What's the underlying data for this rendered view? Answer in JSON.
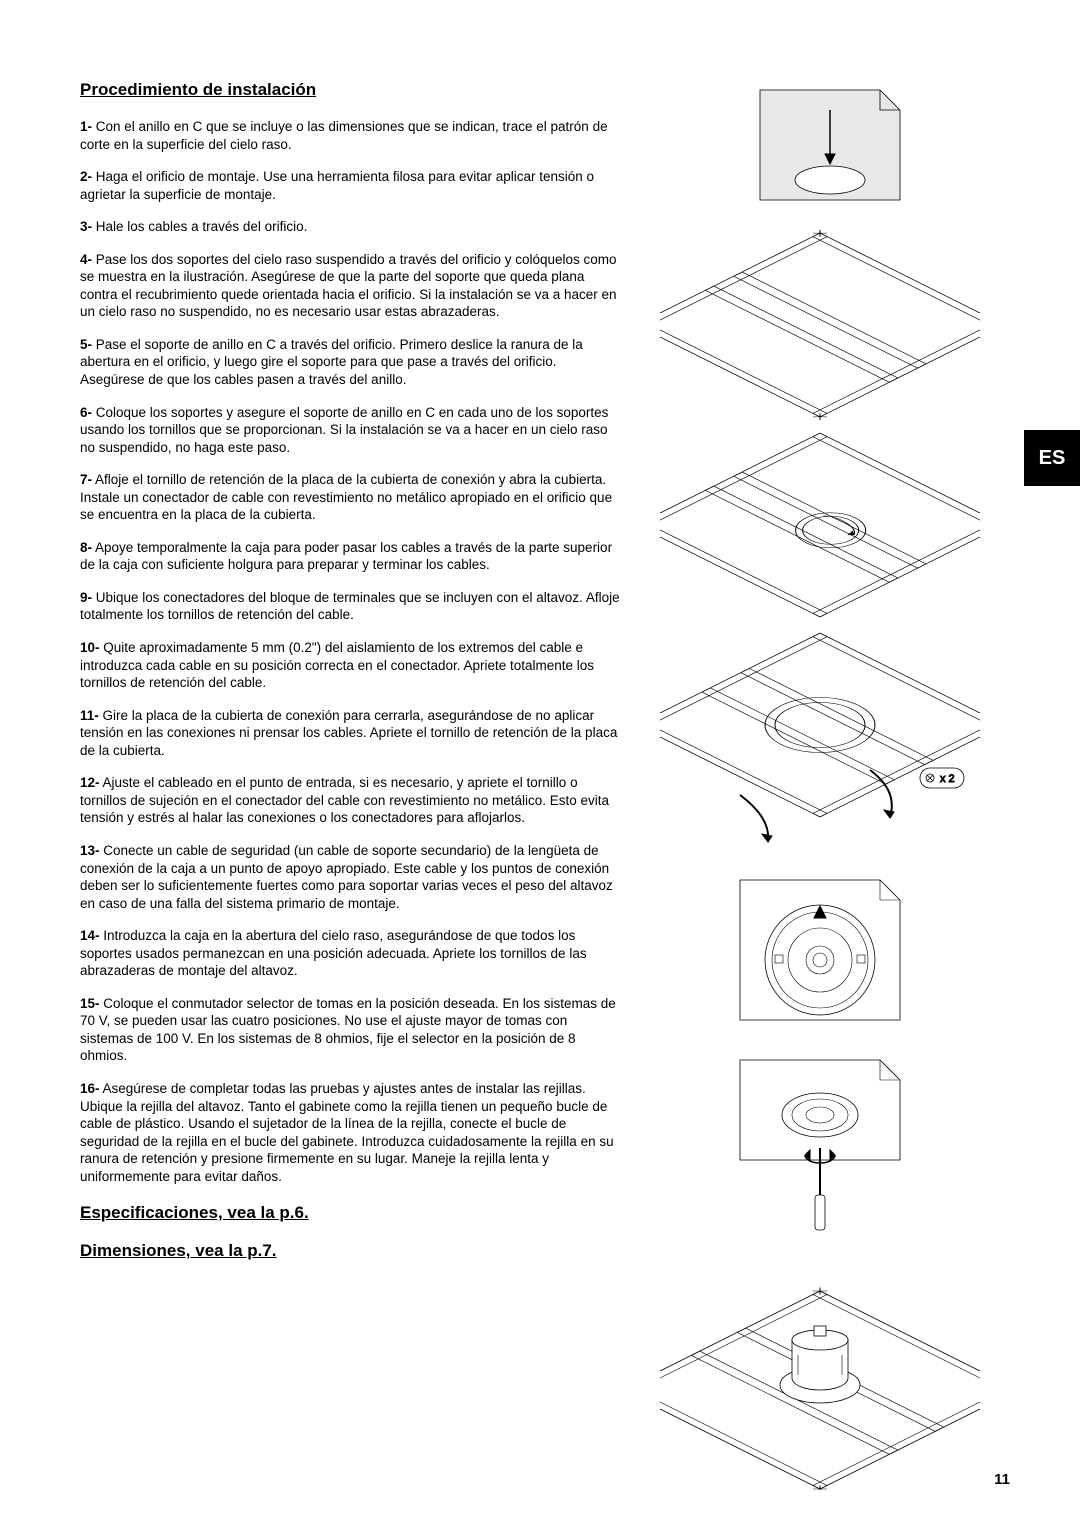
{
  "lang_tab": "ES",
  "page_number": "11",
  "headings": {
    "main": "Procedimiento de instalación",
    "specs": "Especificaciones, vea la p.6.",
    "dims": "Dimensiones, vea la p.7."
  },
  "steps": [
    {
      "num": "1-",
      "text": " Con el anillo en C que se incluye o las dimensiones que se indican, trace el patrón de corte en la superficie del cielo raso."
    },
    {
      "num": "2-",
      "text": " Haga el orificio de montaje. Use una herramienta filosa para evitar aplicar tensión o agrietar la superficie de montaje."
    },
    {
      "num": "3-",
      "text": " Hale los cables a través del orificio."
    },
    {
      "num": "4-",
      "text": " Pase los dos soportes del cielo raso suspendido a través del orificio y colóquelos como se muestra en la ilustración. Asegúrese de que la parte del soporte que queda plana contra el recubrimiento quede orientada hacia el orificio. Si la instalación se va a hacer en un cielo raso no suspendido, no es necesario usar estas abrazaderas."
    },
    {
      "num": "5-",
      "text": " Pase el soporte de anillo en C a través del orificio. Primero deslice la ranura de la abertura en el orificio, y luego gire el soporte para que pase a través del orificio. Asegúrese de que los cables pasen a través del anillo."
    },
    {
      "num": "6-",
      "text": " Coloque los soportes y asegure el soporte de anillo en C en cada uno de los soportes usando los tornillos que se proporcionan. Si la instalación se va a hacer en un cielo raso no suspendido, no haga este paso."
    },
    {
      "num": "7-",
      "text": " Afloje el tornillo de retención de la placa de la cubierta de conexión y abra la cubierta. Instale un conectador de cable con revestimiento no metálico apropiado en el orificio que se encuentra en la placa de la cubierta."
    },
    {
      "num": "8-",
      "text": " Apoye temporalmente la caja para poder pasar los cables a través de la parte superior de la caja con suficiente holgura para preparar y terminar los cables."
    },
    {
      "num": "9-",
      "text": " Ubique los conectadores del bloque de terminales que se incluyen con el altavoz. Afloje totalmente los tornillos de retención del cable."
    },
    {
      "num": "10-",
      "text": " Quite aproximadamente 5 mm (0.2\") del aislamiento de los extremos del cable e introduzca cada cable en su posición correcta en el conectador. Apriete totalmente los tornillos de retención del cable."
    },
    {
      "num": "11-",
      "text": " Gire la placa de la cubierta de conexión para cerrarla, asegurándose de no aplicar tensión en las conexiones ni prensar los cables. Apriete el tornillo de retención de la placa de la cubierta."
    },
    {
      "num": "12-",
      "text": " Ajuste el cableado en el punto de entrada, si es necesario, y apriete el tornillo o tornillos de sujeción en el conectador del cable con revestimiento no metálico. Esto evita tensión y estrés al halar las conexiones o los conectadores para aflojarlos."
    },
    {
      "num": "13-",
      "text": " Conecte un cable de seguridad (un cable de soporte secundario) de la lengüeta de conexión de la caja a un punto de apoyo apropiado. Este cable y los puntos de conexión deben ser lo suficientemente fuertes como para soportar varias veces el peso del altavoz en caso de una falla del sistema primario de montaje."
    },
    {
      "num": "14-",
      "text": " Introduzca la caja en la abertura del cielo raso, asegurándose de que todos los soportes usados permanezcan en una posición adecuada. Apriete los tornillos de las abrazaderas de montaje del altavoz."
    },
    {
      "num": "15-",
      "text": " Coloque el conmutador selector de tomas en la posición deseada. En los sistemas de 70 V, se pueden usar las cuatro posiciones. No use el ajuste mayor de tomas con sistemas de 100 V. En los sistemas de 8 ohmios, fije el selector en la posición de 8 ohmios."
    },
    {
      "num": "16-",
      "text": " Asegúrese de completar todas las pruebas y ajustes antes de instalar las rejillas. Ubique la rejilla del altavoz. Tanto el gabinete como la rejilla tienen un pequeño bucle de cable de plástico. Usando el sujetador de la línea de la rejilla, conecte el bucle de seguridad de la rejilla en el bucle del gabinete. Introduzca cuidadosamente la rejilla en su ranura de retención y presione firmemente en su lugar. Maneje la rejilla lenta y uniformemente para evitar daños."
    }
  ],
  "diagram_label": "x 2",
  "colors": {
    "text": "#000000",
    "bg": "#ffffff",
    "tile_fill": "#e8e8e8"
  }
}
